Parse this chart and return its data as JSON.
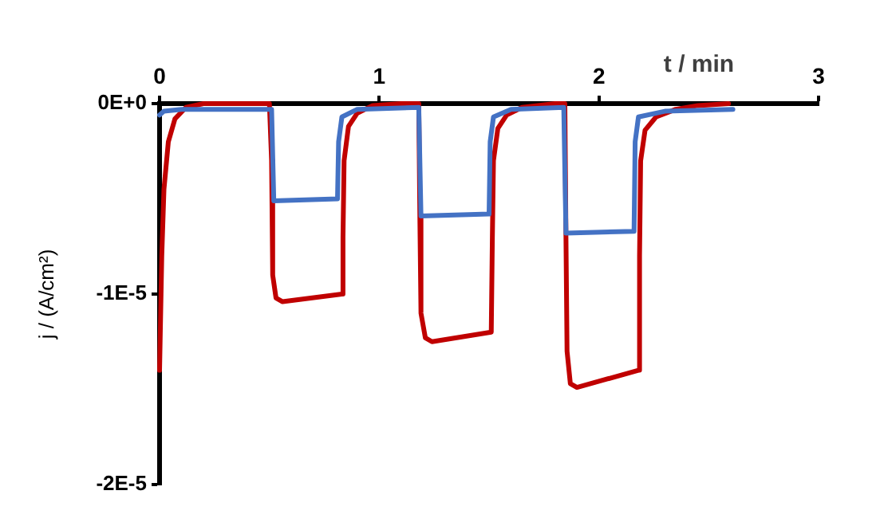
{
  "chart_data": {
    "type": "line",
    "xlabel": "t / min",
    "ylabel": "j / (A/cm²)",
    "xlim": [
      0,
      3
    ],
    "xticks": [
      0,
      1,
      2,
      3
    ],
    "ylim": [
      -2e-05,
      0
    ],
    "yticks": [
      {
        "value": 0,
        "label": "0E+0"
      },
      {
        "value": -1e-05,
        "label": "-1E-5"
      },
      {
        "value": -2e-05,
        "label": "-2E-5"
      }
    ],
    "grid": false,
    "legend": false,
    "marker": "none",
    "line_style": "solid",
    "series": [
      {
        "color": "#4472c4",
        "x": [
          0,
          0.02,
          0.1,
          0.51,
          0.52,
          0.81,
          0.815,
          0.83,
          0.9,
          1.18,
          1.19,
          1.5,
          1.505,
          1.52,
          1.6,
          1.84,
          1.85,
          2.16,
          2.165,
          2.18,
          2.3,
          2.61
        ],
        "values": [
          -6e-07,
          -4e-07,
          -3e-07,
          -3e-07,
          -5.1e-06,
          -5e-06,
          -2e-06,
          -7e-07,
          -3e-07,
          -2e-07,
          -5.9e-06,
          -5.8e-06,
          -2e-06,
          -7e-07,
          -3e-07,
          -2e-07,
          -6.8e-06,
          -6.7e-06,
          -2e-06,
          -7e-07,
          -4e-07,
          -3e-07
        ]
      },
      {
        "color": "#c00000",
        "x": [
          0,
          0.01,
          0.02,
          0.04,
          0.07,
          0.12,
          0.2,
          0.5,
          0.51,
          0.515,
          0.53,
          0.56,
          0.83,
          0.835,
          0.84,
          0.86,
          0.9,
          0.97,
          1.1,
          1.18,
          1.185,
          1.19,
          1.21,
          1.24,
          1.51,
          1.515,
          1.52,
          1.54,
          1.58,
          1.65,
          1.8,
          1.845,
          1.85,
          1.855,
          1.87,
          1.9,
          2.18,
          2.185,
          2.19,
          2.21,
          2.26,
          2.35,
          2.45,
          2.59
        ],
        "values": [
          -1.4e-05,
          -8e-06,
          -4.5e-06,
          -2e-06,
          -8e-07,
          -2e-07,
          0,
          0,
          -3e-06,
          -9e-06,
          -1.02e-05,
          -1.04e-05,
          -1e-05,
          -7e-06,
          -3e-06,
          -1.2e-06,
          -5e-07,
          -1e-07,
          0,
          0,
          -6e-06,
          -1.1e-05,
          -1.23e-05,
          -1.25e-05,
          -1.2e-05,
          -7e-06,
          -3e-06,
          -1.3e-06,
          -6e-07,
          -2e-07,
          0,
          0,
          -7e-06,
          -1.3e-05,
          -1.47e-05,
          -1.49e-05,
          -1.4e-05,
          -8e-06,
          -3e-06,
          -1.4e-06,
          -7e-07,
          -3e-07,
          -1e-07,
          0
        ]
      }
    ]
  }
}
